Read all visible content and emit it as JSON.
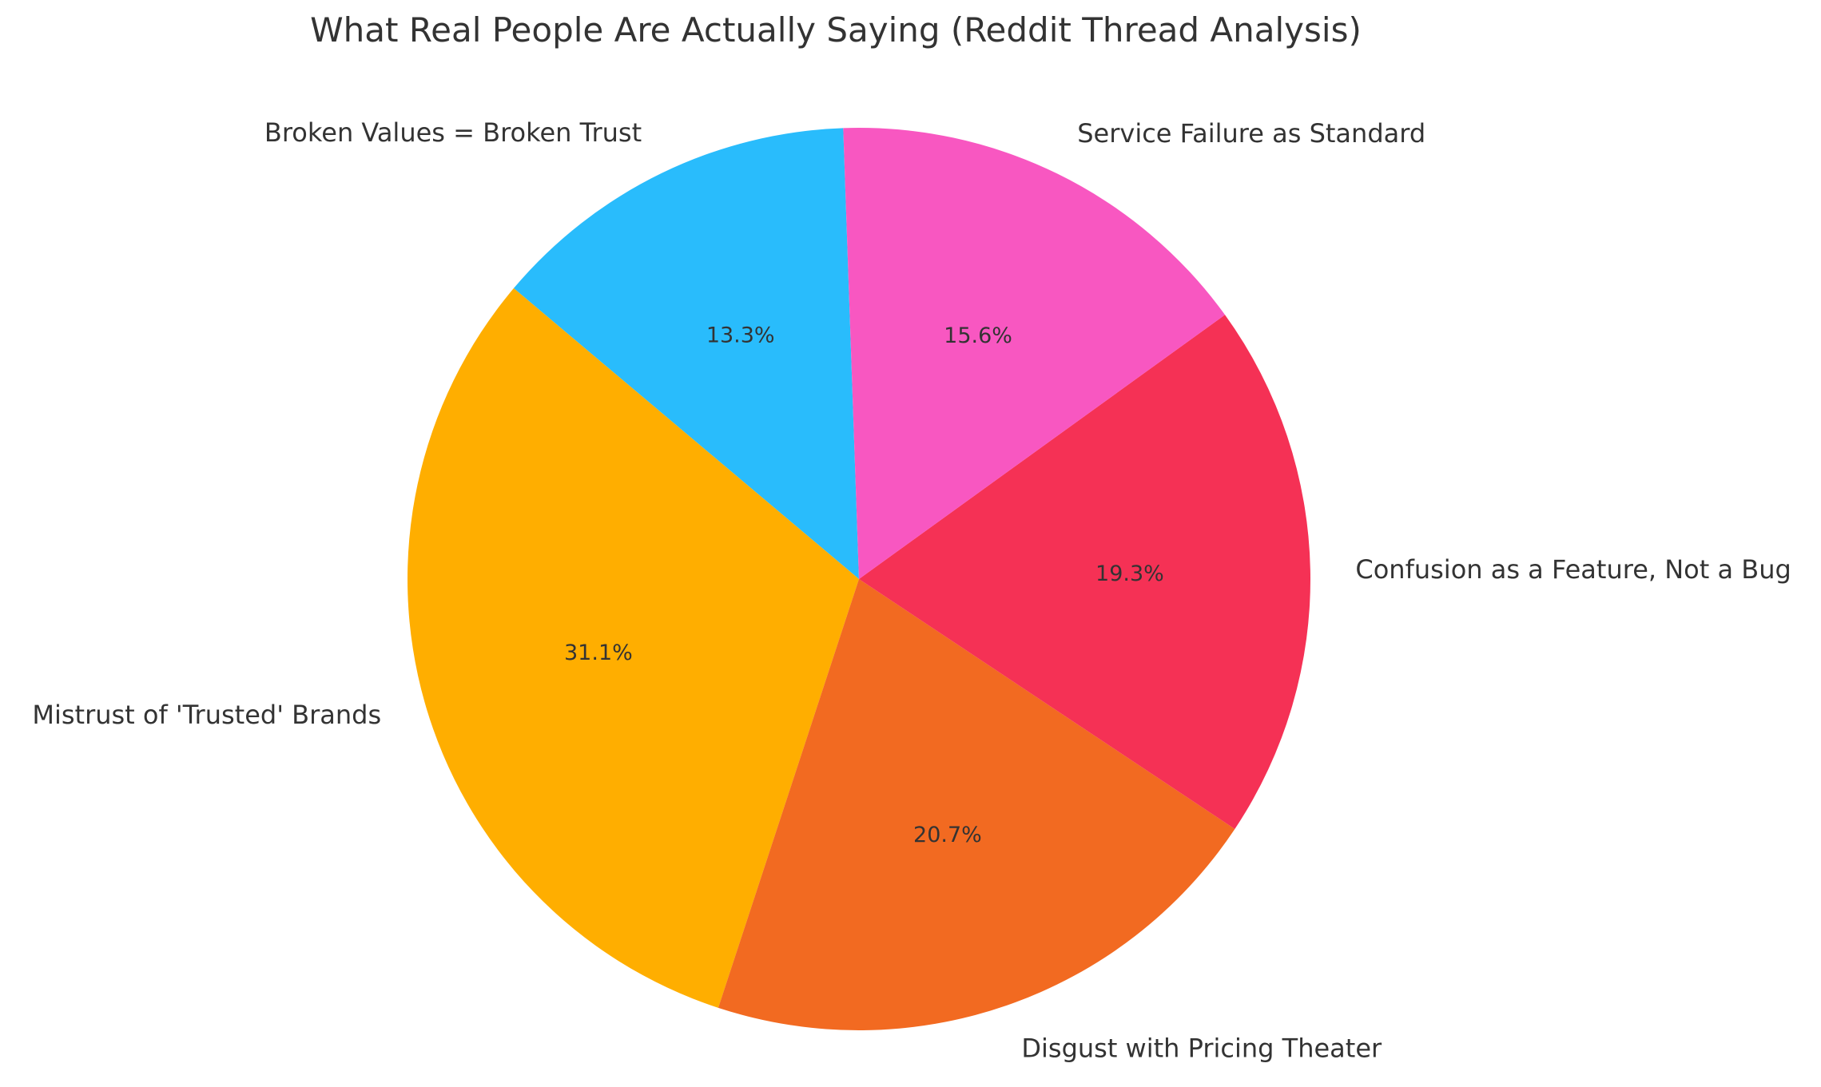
{
  "chart_data": {
    "type": "pie",
    "title": "What Real People Are Actually Saying (Reddit Thread Analysis)",
    "start_angle_deg": 92,
    "direction": "counterclockwise",
    "slices": [
      {
        "label": "Broken Values = Broken Trust",
        "value": 13.3,
        "pct_label": "13.3%",
        "color": "#29BCFC"
      },
      {
        "label": "Mistrust of 'Trusted' Brands",
        "value": 31.1,
        "pct_label": "31.1%",
        "color": "#FFAE00"
      },
      {
        "label": "Disgust with Pricing Theater",
        "value": 20.7,
        "pct_label": "20.7%",
        "color": "#F26A21"
      },
      {
        "label": "Confusion as a Feature, Not a Bug",
        "value": 19.3,
        "pct_label": "19.3%",
        "color": "#F53155"
      },
      {
        "label": "Service Failure as Standard",
        "value": 15.6,
        "pct_label": "15.6%",
        "color": "#F857C1"
      }
    ]
  }
}
